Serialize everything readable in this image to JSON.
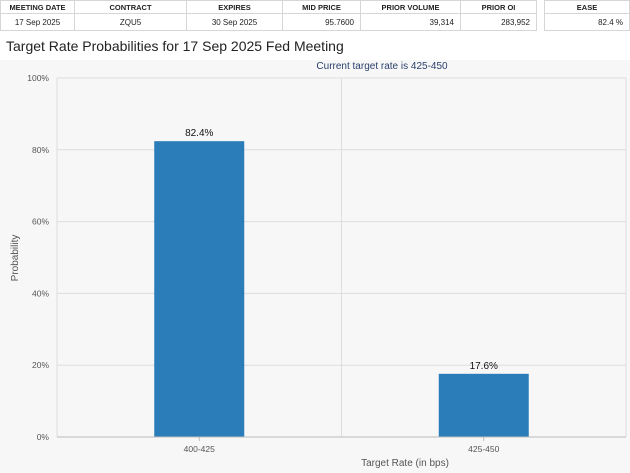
{
  "info_table": {
    "headers": [
      "MEETING DATE",
      "CONTRACT",
      "EXPIRES",
      "MID PRICE",
      "PRIOR VOLUME",
      "PRIOR OI"
    ],
    "values": [
      "17 Sep 2025",
      "ZQU5",
      "30 Sep 2025",
      "95.7600",
      "39,314",
      "283,952"
    ],
    "side_header": "EASE",
    "side_value": "82.4 %"
  },
  "colors": {
    "bar": "#2a7db8",
    "grid": "#dddddd",
    "axis": "#bbbbbb",
    "background": "#f7f7f7"
  },
  "chart_data": {
    "type": "bar",
    "title": "Target Rate Probabilities for 17 Sep 2025 Fed Meeting",
    "subtitle": "Current target rate is 425-450",
    "xlabel": "Target Rate (in bps)",
    "ylabel": "Probability",
    "categories": [
      "400-425",
      "425-450"
    ],
    "values": [
      82.4,
      17.6
    ],
    "data_labels": [
      "82.4%",
      "17.6%"
    ],
    "ylim": [
      0,
      100
    ],
    "yticks": [
      0,
      20,
      40,
      60,
      80,
      100
    ],
    "ytick_labels": [
      "0%",
      "20%",
      "40%",
      "60%",
      "80%",
      "100%"
    ],
    "grid": "horizontal",
    "legend": "none"
  }
}
